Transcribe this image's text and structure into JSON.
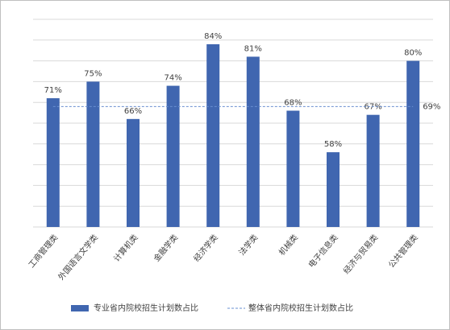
{
  "chart_data": {
    "type": "bar",
    "categories": [
      "工商管理类",
      "外国语言文学类",
      "计算机类",
      "金融学类",
      "经济学类",
      "法学类",
      "机械类",
      "电子信息类",
      "经济与贸易类",
      "公共管理类"
    ],
    "series": [
      {
        "name": "专业省内院校招生计划数占比",
        "color": "#4066b0",
        "values": [
          71,
          75,
          66,
          74,
          84,
          81,
          68,
          58,
          67,
          80
        ],
        "value_labels": [
          "71%",
          "75%",
          "66%",
          "74%",
          "84%",
          "81%",
          "68%",
          "58%",
          "67%",
          "80%"
        ]
      }
    ],
    "reference_line": {
      "name": "整体省内院校招生计划数占比",
      "value": 69,
      "label": "69%",
      "color": "#6a8fd0"
    },
    "ylim": [
      40,
      90
    ],
    "yticks": [
      40,
      45,
      50,
      55,
      60,
      65,
      70,
      75,
      80,
      85,
      90
    ],
    "grid": true
  }
}
